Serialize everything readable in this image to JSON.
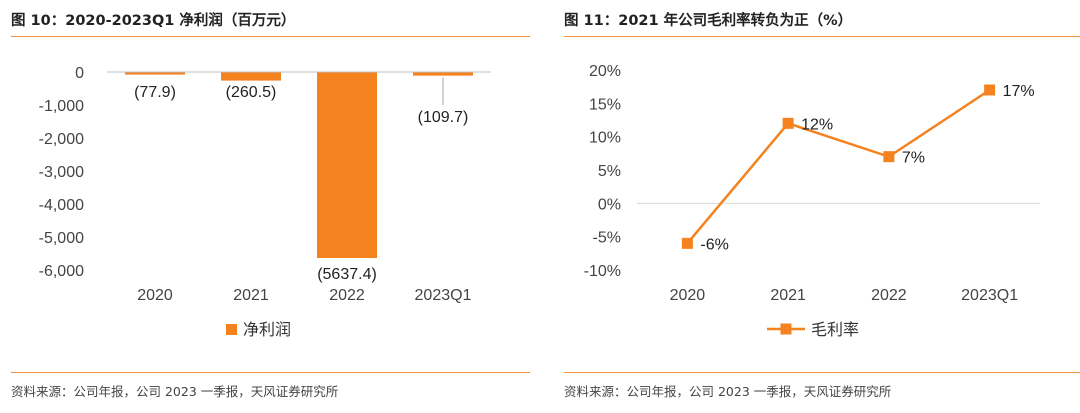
{
  "left_panel": {
    "title": "图 10：2020-2023Q1 净利润（百万元）",
    "source": "资料来源：公司年报，公司 2023 一季报，天风证券研究所"
  },
  "right_panel": {
    "title": "图 11：2021 年公司毛利率转负为正（%）",
    "source": "资料来源：公司年报，公司 2023 一季报，天风证券研究所"
  },
  "chart_data": [
    {
      "type": "bar",
      "title": "图 10：2020-2023Q1 净利润（百万元）",
      "categories": [
        "2020",
        "2021",
        "2022",
        "2023Q1"
      ],
      "series": [
        {
          "name": "净利润",
          "values": [
            -77.9,
            -260.5,
            -5637.4,
            -109.7
          ]
        }
      ],
      "data_labels": [
        "(77.9)",
        "(260.5)",
        "(5637.4)",
        "(109.7)"
      ],
      "ylim": [
        -6000,
        0
      ],
      "yticks": [
        0,
        -1000,
        -2000,
        -3000,
        -4000,
        -5000,
        -6000
      ],
      "ytick_labels": [
        "0",
        "-1,000",
        "-2,000",
        "-3,000",
        "-4,000",
        "-5,000",
        "-6,000"
      ],
      "xlabel": "",
      "ylabel": "",
      "grid": false,
      "legend": "bottom",
      "color": "#F4821F"
    },
    {
      "type": "line",
      "title": "图 11：2021 年公司毛利率转负为正（%）",
      "categories": [
        "2020",
        "2021",
        "2022",
        "2023Q1"
      ],
      "series": [
        {
          "name": "毛利率",
          "values": [
            -6,
            12,
            7,
            17
          ]
        }
      ],
      "data_labels": [
        "-6%",
        "12%",
        "7%",
        "17%"
      ],
      "ylim": [
        -10,
        20
      ],
      "yticks": [
        20,
        15,
        10,
        5,
        0,
        -5,
        -10
      ],
      "ytick_labels": [
        "20%",
        "15%",
        "10%",
        "5%",
        "0%",
        "-5%",
        "-10%"
      ],
      "xlabel": "",
      "ylabel": "",
      "grid": false,
      "legend": "bottom",
      "color": "#F4821F"
    }
  ]
}
